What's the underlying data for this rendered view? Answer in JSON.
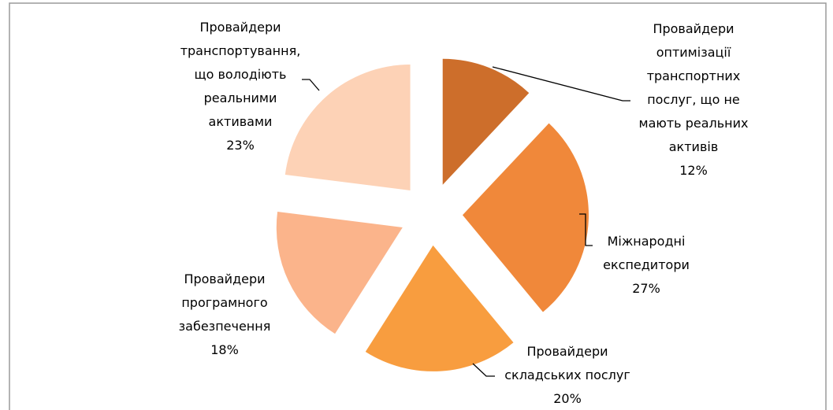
{
  "chart_data": {
    "type": "pie",
    "categories": [
      "Провайдери\nоптимізації\nтранспортних\nпослуг, що не\nмають реальних\nактивів",
      "Міжнародні\nекспедитори",
      "Провайдери\nскладських послуг",
      "Провайдери\nпрограмного\nзабезпечення",
      "Провайдери\nтранспортування,\nщо володіють\nреальними\nактивами"
    ],
    "values": [
      12,
      27,
      20,
      18,
      23
    ],
    "value_labels": [
      "12%",
      "27%",
      "20%",
      "18%",
      "23%"
    ],
    "colors": [
      "#cd6e2b",
      "#f0883a",
      "#f89d3f",
      "#fbb48b",
      "#fdd2b6"
    ]
  }
}
